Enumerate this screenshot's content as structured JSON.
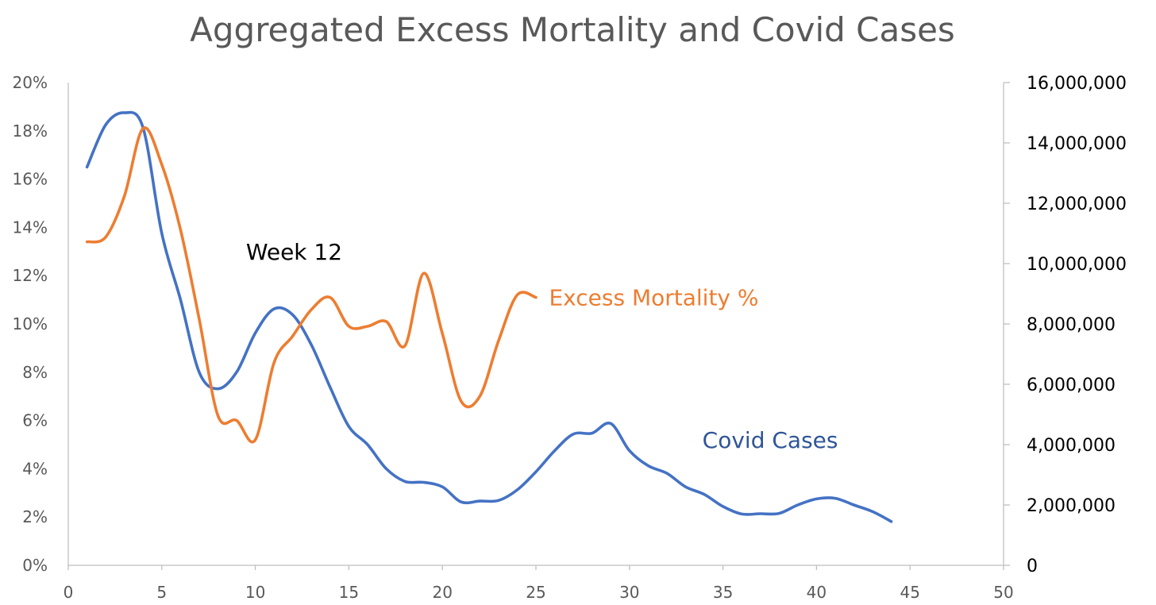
{
  "chart_data": {
    "type": "line",
    "title": "Aggregated Excess Mortality and Covid Cases",
    "xlabel": "",
    "ylabel": "",
    "y2label": "",
    "xlim": [
      0,
      50
    ],
    "ylim": [
      0,
      20
    ],
    "y2lim": [
      0,
      16000000
    ],
    "x_ticks": [
      "0",
      "5",
      "10",
      "15",
      "20",
      "25",
      "30",
      "35",
      "40",
      "45",
      "50"
    ],
    "y_ticks": [
      "0%",
      "2%",
      "4%",
      "6%",
      "8%",
      "10%",
      "12%",
      "14%",
      "16%",
      "18%",
      "20%"
    ],
    "y2_ticks": [
      "0",
      "2,000,000",
      "4,000,000",
      "6,000,000",
      "8,000,000",
      "10,000,000",
      "12,000,000",
      "14,000,000",
      "16,000,000"
    ],
    "grid": false,
    "legend": "none",
    "series": [
      {
        "name": "Excess Mortality %",
        "axis": "left",
        "color": "#ED7D31",
        "x": [
          1,
          2,
          3,
          4,
          5,
          6,
          7,
          8,
          9,
          10,
          11,
          12,
          13,
          14,
          15,
          16,
          17,
          18,
          19,
          20,
          21,
          22,
          23,
          24,
          25
        ],
        "values": [
          13.4,
          13.6,
          15.3,
          18.1,
          16.6,
          13.9,
          10.2,
          6.2,
          6.0,
          5.2,
          8.4,
          9.5,
          10.6,
          11.1,
          9.9,
          9.9,
          10.1,
          9.1,
          12.1,
          9.6,
          6.8,
          7.0,
          9.3,
          11.2,
          11.1
        ]
      },
      {
        "name": "Covid Cases",
        "axis": "right",
        "color": "#4472C4",
        "x": [
          1,
          2,
          3,
          4,
          5,
          6,
          7,
          8,
          9,
          10,
          11,
          12,
          13,
          14,
          15,
          16,
          17,
          18,
          19,
          20,
          21,
          22,
          23,
          24,
          25,
          26,
          27,
          28,
          29,
          30,
          31,
          32,
          33,
          34,
          35,
          36,
          37,
          38,
          39,
          40,
          41,
          42,
          43,
          44
        ],
        "values": [
          13200000,
          14600000,
          15000000,
          14500000,
          11000000,
          8800000,
          6400000,
          5850000,
          6400000,
          7700000,
          8500000,
          8300000,
          7300000,
          5900000,
          4600000,
          4000000,
          3200000,
          2780000,
          2750000,
          2600000,
          2100000,
          2130000,
          2150000,
          2500000,
          3100000,
          3800000,
          4350000,
          4380000,
          4700000,
          3800000,
          3300000,
          3050000,
          2600000,
          2350000,
          1950000,
          1700000,
          1710000,
          1720000,
          2000000,
          2200000,
          2220000,
          2000000,
          1780000,
          1450000
        ]
      }
    ],
    "annotations": [
      {
        "text": "Week 12",
        "x": 9.5,
        "y": 13.0,
        "axis": "left",
        "color": "#000000"
      },
      {
        "text": "Excess Mortality %",
        "x": 25.7,
        "y": 11.1,
        "axis": "left",
        "color": "#ED7D31"
      },
      {
        "text": "Covid Cases",
        "x": 33.9,
        "y": 5.2,
        "axis": "left",
        "color": "#2F5597"
      }
    ]
  }
}
